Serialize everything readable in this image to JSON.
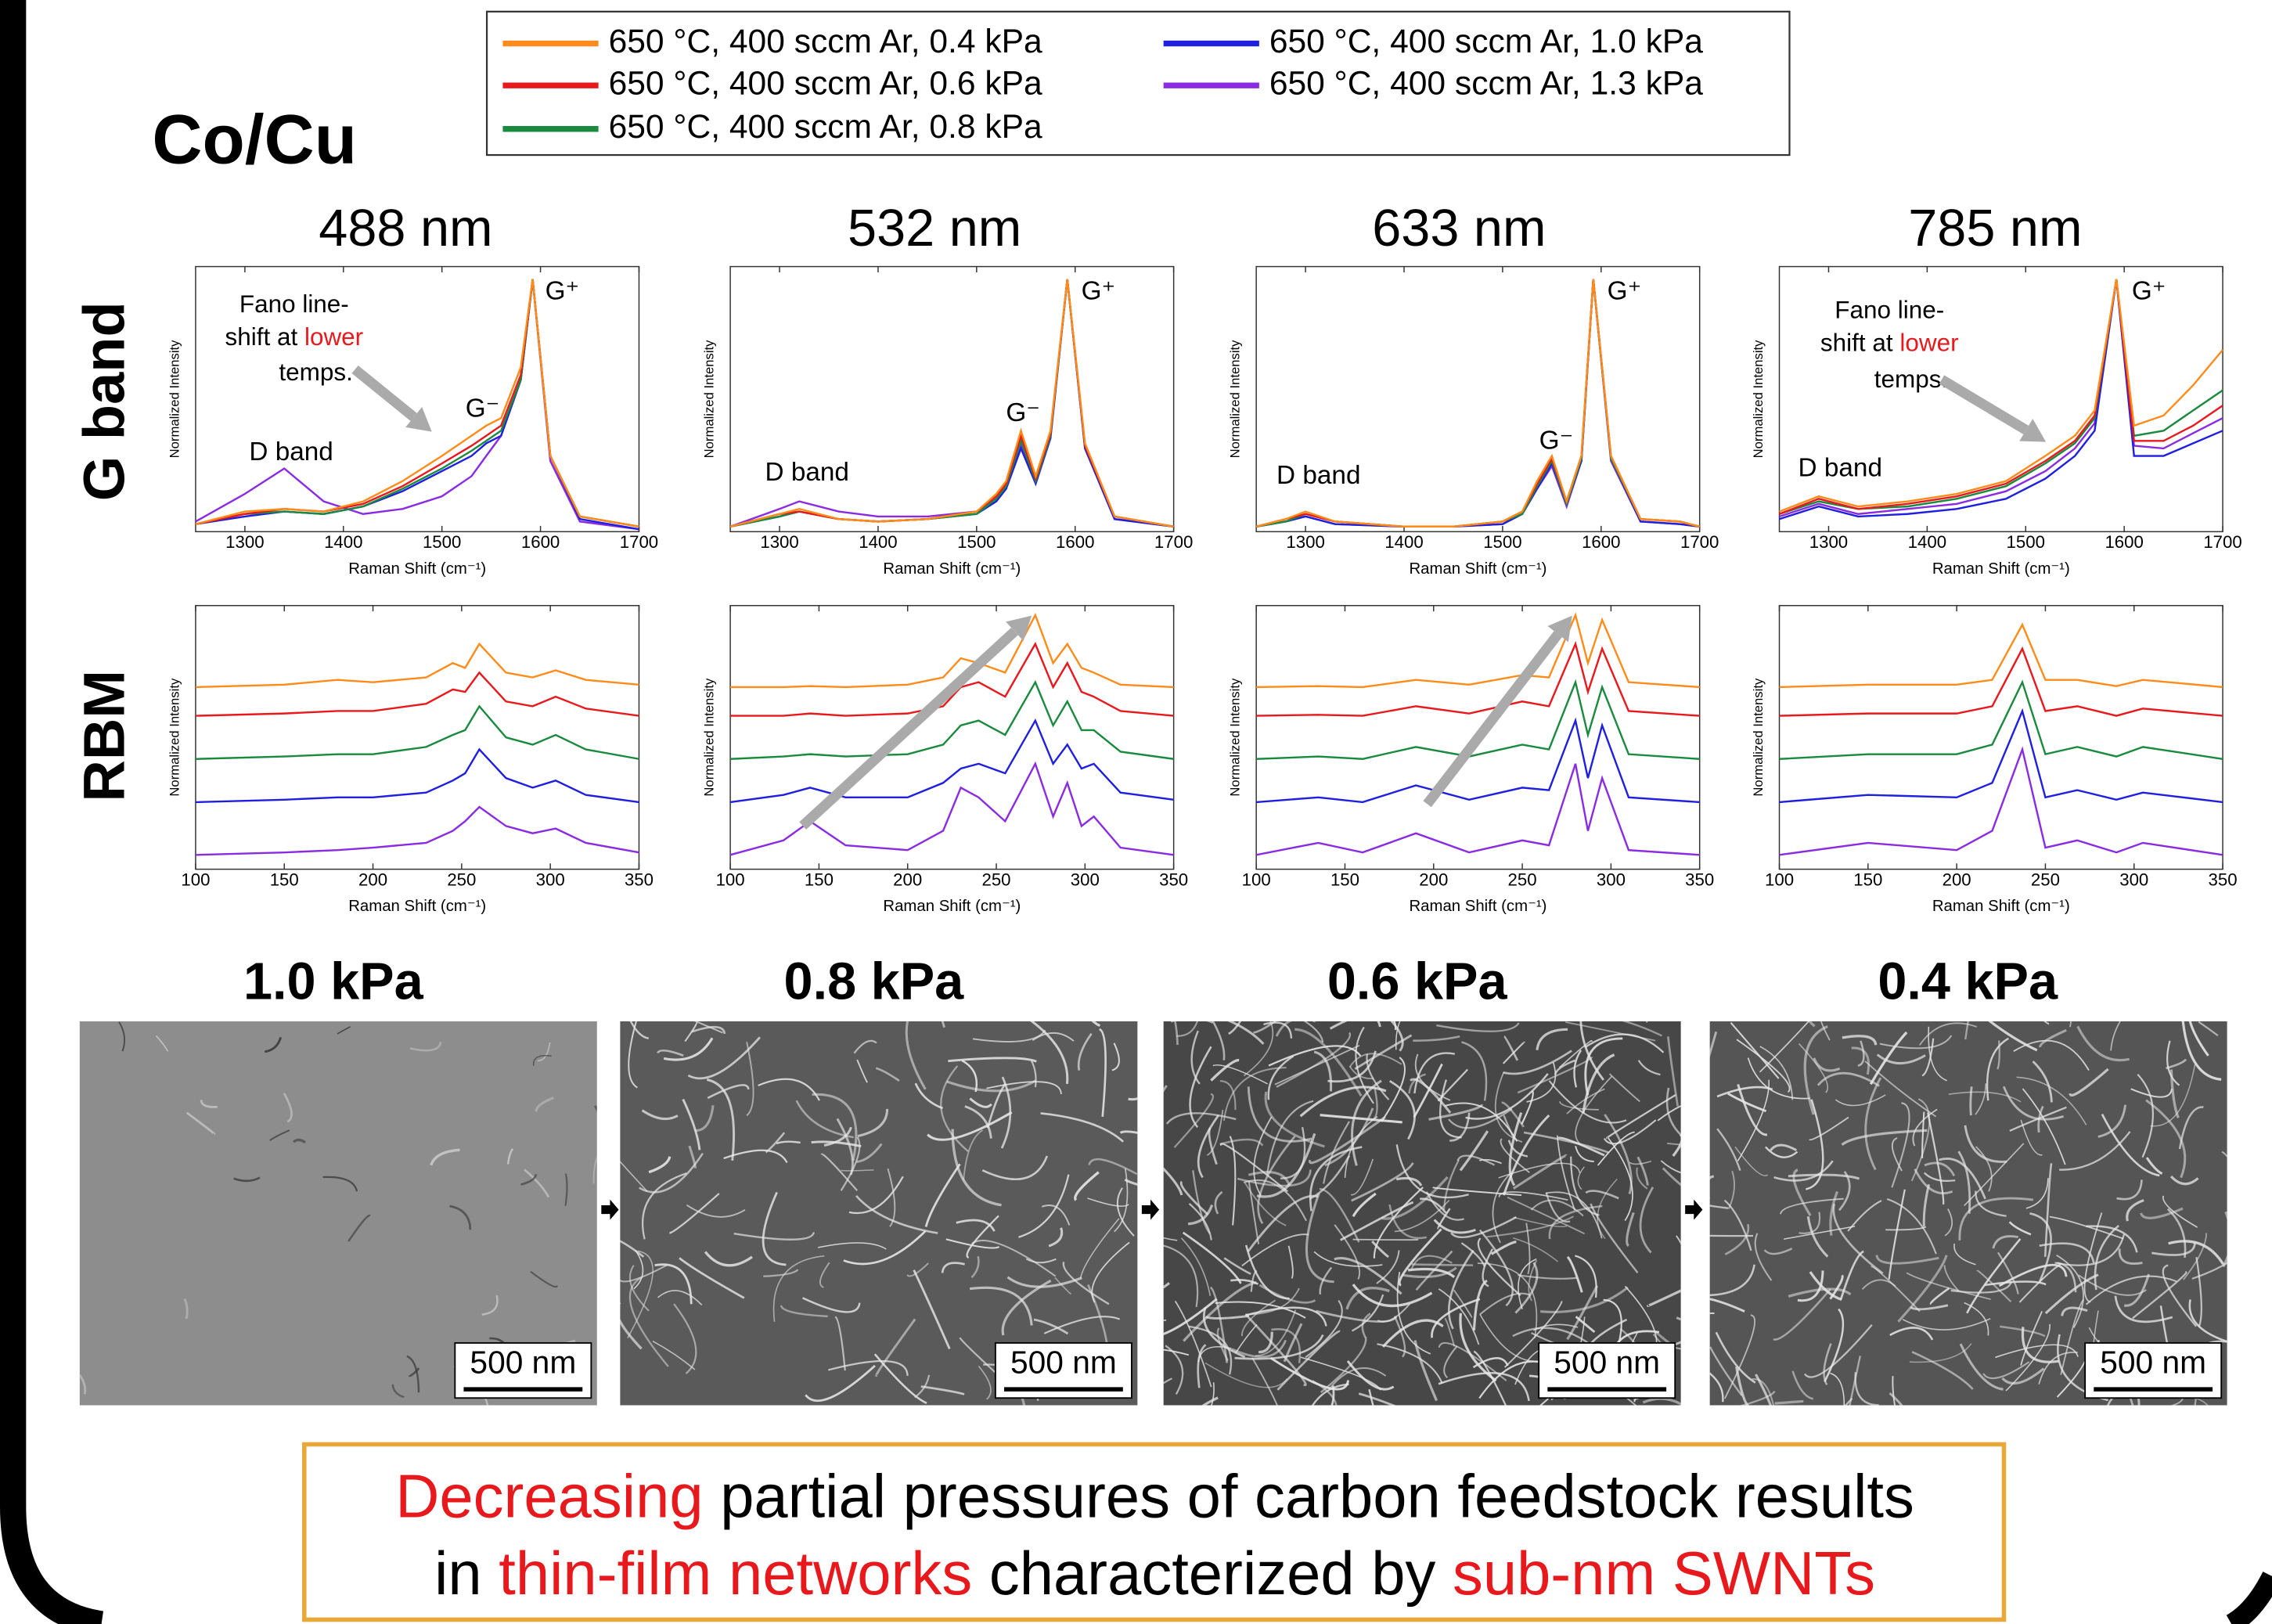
{
  "heading": "Co/Cu",
  "row_labels": [
    "G band",
    "RBM"
  ],
  "legend": [
    {
      "name": "650 °C, 400 sccm Ar, 0.4 kPa",
      "color": "#ff8c1a"
    },
    {
      "name": "650 °C, 400 sccm Ar, 0.6 kPa",
      "color": "#e8191c"
    },
    {
      "name": "650 °C, 400 sccm Ar, 0.8 kPa",
      "color": "#1a8a3e"
    },
    {
      "name": "650 °C, 400 sccm Ar, 1.0 kPa",
      "color": "#1f1fe0"
    },
    {
      "name": "650 °C, 400 sccm Ar, 1.3 kPa",
      "color": "#8a2be2"
    }
  ],
  "chart_data": [
    {
      "type": "line",
      "title": "488 nm",
      "xlabel": "Raman Shift (cm⁻¹)",
      "ylabel": "Normalized Intensity",
      "x": [
        1250,
        1300,
        1340,
        1380,
        1420,
        1460,
        1500,
        1530,
        1545,
        1560,
        1580,
        1592,
        1610,
        1640,
        1700
      ],
      "xlim": [
        1250,
        1700
      ],
      "xticks": [
        1300,
        1400,
        1500,
        1600,
        1700
      ],
      "ylim": [
        0,
        1.05
      ],
      "series": [
        {
          "values": [
            0.03,
            0.08,
            0.09,
            0.08,
            0.12,
            0.2,
            0.3,
            0.38,
            0.42,
            0.45,
            0.65,
            1.0,
            0.3,
            0.06,
            0.02
          ]
        },
        {
          "values": [
            0.03,
            0.07,
            0.09,
            0.08,
            0.11,
            0.18,
            0.27,
            0.34,
            0.38,
            0.42,
            0.62,
            1.0,
            0.3,
            0.06,
            0.02
          ]
        },
        {
          "values": [
            0.03,
            0.07,
            0.08,
            0.07,
            0.1,
            0.17,
            0.25,
            0.32,
            0.36,
            0.4,
            0.6,
            1.0,
            0.3,
            0.06,
            0.02
          ]
        },
        {
          "values": [
            0.03,
            0.06,
            0.08,
            0.07,
            0.1,
            0.16,
            0.24,
            0.3,
            0.35,
            0.38,
            0.6,
            1.0,
            0.3,
            0.05,
            0.01
          ]
        },
        {
          "values": [
            0.04,
            0.15,
            0.25,
            0.12,
            0.07,
            0.09,
            0.14,
            0.22,
            0.3,
            0.38,
            0.6,
            1.0,
            0.28,
            0.04,
            0.01
          ]
        }
      ],
      "annotations": [
        "D band",
        "G⁻",
        "G⁺"
      ],
      "note": [
        {
          "text": "Fano line-"
        },
        {
          "text": "shift at"
        },
        {
          "text": "lower",
          "color": "#e8191c"
        },
        {
          "text": "temps."
        }
      ]
    },
    {
      "type": "line",
      "title": "532 nm",
      "xlabel": "Raman Shift (cm⁻¹)",
      "ylabel": "Normalized Intensity",
      "x": [
        1250,
        1300,
        1320,
        1360,
        1400,
        1450,
        1500,
        1520,
        1530,
        1545,
        1560,
        1575,
        1592,
        1610,
        1640,
        1700
      ],
      "xlim": [
        1250,
        1700
      ],
      "xticks": [
        1300,
        1400,
        1500,
        1600,
        1700
      ],
      "ylim": [
        0,
        1.05
      ],
      "series": [
        {
          "values": [
            0.02,
            0.07,
            0.09,
            0.05,
            0.04,
            0.05,
            0.08,
            0.15,
            0.2,
            0.4,
            0.22,
            0.4,
            1.0,
            0.35,
            0.06,
            0.02
          ]
        },
        {
          "values": [
            0.02,
            0.07,
            0.08,
            0.05,
            0.04,
            0.05,
            0.08,
            0.14,
            0.19,
            0.38,
            0.21,
            0.39,
            1.0,
            0.34,
            0.06,
            0.02
          ]
        },
        {
          "values": [
            0.02,
            0.06,
            0.08,
            0.05,
            0.04,
            0.05,
            0.07,
            0.13,
            0.18,
            0.36,
            0.2,
            0.38,
            1.0,
            0.34,
            0.06,
            0.02
          ]
        },
        {
          "values": [
            0.02,
            0.06,
            0.08,
            0.05,
            0.04,
            0.05,
            0.07,
            0.12,
            0.17,
            0.33,
            0.19,
            0.37,
            1.0,
            0.33,
            0.05,
            0.02
          ]
        },
        {
          "values": [
            0.02,
            0.09,
            0.12,
            0.08,
            0.06,
            0.06,
            0.08,
            0.13,
            0.18,
            0.34,
            0.2,
            0.38,
            1.0,
            0.33,
            0.05,
            0.02
          ]
        }
      ],
      "annotations": [
        "D band",
        "G⁻",
        "G⁺"
      ]
    },
    {
      "type": "line",
      "title": "633 nm",
      "xlabel": "Raman Shift (cm⁻¹)",
      "ylabel": "Normalized Intensity",
      "x": [
        1250,
        1280,
        1300,
        1330,
        1400,
        1450,
        1500,
        1520,
        1535,
        1550,
        1565,
        1580,
        1592,
        1610,
        1640,
        1680,
        1700
      ],
      "xlim": [
        1250,
        1700
      ],
      "xticks": [
        1300,
        1400,
        1500,
        1600,
        1700
      ],
      "ylim": [
        0,
        1.05
      ],
      "series": [
        {
          "values": [
            0.02,
            0.05,
            0.08,
            0.04,
            0.02,
            0.02,
            0.04,
            0.08,
            0.2,
            0.3,
            0.12,
            0.3,
            1.0,
            0.3,
            0.05,
            0.04,
            0.02
          ]
        },
        {
          "values": [
            0.02,
            0.05,
            0.07,
            0.04,
            0.02,
            0.02,
            0.04,
            0.08,
            0.19,
            0.29,
            0.12,
            0.3,
            1.0,
            0.3,
            0.05,
            0.04,
            0.02
          ]
        },
        {
          "values": [
            0.02,
            0.04,
            0.07,
            0.04,
            0.02,
            0.02,
            0.04,
            0.07,
            0.18,
            0.28,
            0.11,
            0.29,
            1.0,
            0.29,
            0.05,
            0.04,
            0.02
          ]
        },
        {
          "values": [
            0.02,
            0.04,
            0.06,
            0.03,
            0.02,
            0.02,
            0.03,
            0.07,
            0.17,
            0.27,
            0.11,
            0.28,
            1.0,
            0.29,
            0.04,
            0.03,
            0.02
          ]
        },
        {
          "values": [
            0.02,
            0.04,
            0.06,
            0.03,
            0.02,
            0.02,
            0.03,
            0.07,
            0.17,
            0.26,
            0.1,
            0.28,
            1.0,
            0.28,
            0.04,
            0.03,
            0.02
          ]
        }
      ],
      "annotations": [
        "D band",
        "G⁻",
        "G⁺"
      ]
    },
    {
      "type": "line",
      "title": "785 nm",
      "xlabel": "Raman Shift (cm⁻¹)",
      "ylabel": "Normalized Intensity",
      "x": [
        1250,
        1290,
        1330,
        1380,
        1430,
        1480,
        1520,
        1550,
        1570,
        1592,
        1610,
        1640,
        1670,
        1700
      ],
      "xlim": [
        1250,
        1700
      ],
      "xticks": [
        1300,
        1400,
        1500,
        1600,
        1700
      ],
      "ylim": [
        0,
        1.05
      ],
      "series": [
        {
          "values": [
            0.08,
            0.14,
            0.1,
            0.12,
            0.15,
            0.2,
            0.3,
            0.38,
            0.48,
            1.0,
            0.42,
            0.46,
            0.58,
            0.72
          ]
        },
        {
          "values": [
            0.07,
            0.13,
            0.09,
            0.11,
            0.14,
            0.19,
            0.28,
            0.36,
            0.46,
            1.0,
            0.36,
            0.36,
            0.42,
            0.5
          ]
        },
        {
          "values": [
            0.07,
            0.12,
            0.09,
            0.1,
            0.13,
            0.18,
            0.27,
            0.35,
            0.45,
            1.0,
            0.38,
            0.4,
            0.48,
            0.56
          ]
        },
        {
          "values": [
            0.05,
            0.1,
            0.06,
            0.07,
            0.09,
            0.13,
            0.21,
            0.3,
            0.4,
            1.0,
            0.3,
            0.3,
            0.35,
            0.4
          ]
        },
        {
          "values": [
            0.06,
            0.11,
            0.07,
            0.09,
            0.11,
            0.16,
            0.24,
            0.33,
            0.43,
            1.0,
            0.34,
            0.33,
            0.39,
            0.45
          ]
        }
      ],
      "annotations": [
        "D band",
        "G⁺"
      ],
      "note": [
        {
          "text": "Fano line-"
        },
        {
          "text": "shift at"
        },
        {
          "text": "lower",
          "color": "#e8191c"
        },
        {
          "text": "temps."
        }
      ]
    },
    {
      "type": "line",
      "xlabel": "Raman Shift (cm⁻¹)",
      "ylabel": "Normalized Intensity",
      "x": [
        100,
        150,
        180,
        200,
        230,
        245,
        252,
        260,
        275,
        290,
        303,
        320,
        350
      ],
      "xlim": [
        100,
        350
      ],
      "xticks": [
        100,
        150,
        200,
        250,
        300,
        350
      ],
      "ylim": [
        0,
        5.5
      ],
      "series": [
        {
          "values": [
            3.8,
            3.85,
            3.95,
            3.9,
            4.0,
            4.3,
            4.2,
            4.7,
            4.1,
            4.0,
            4.15,
            3.95,
            3.85
          ]
        },
        {
          "values": [
            3.2,
            3.25,
            3.3,
            3.3,
            3.45,
            3.75,
            3.7,
            4.1,
            3.5,
            3.4,
            3.6,
            3.35,
            3.2
          ]
        },
        {
          "values": [
            2.3,
            2.35,
            2.4,
            2.4,
            2.55,
            2.8,
            2.9,
            3.4,
            2.75,
            2.6,
            2.8,
            2.5,
            2.3
          ]
        },
        {
          "values": [
            1.4,
            1.45,
            1.5,
            1.5,
            1.6,
            1.85,
            2.0,
            2.5,
            1.9,
            1.7,
            1.85,
            1.55,
            1.4
          ]
        },
        {
          "values": [
            0.3,
            0.35,
            0.4,
            0.45,
            0.55,
            0.8,
            1.0,
            1.3,
            0.9,
            0.75,
            0.85,
            0.55,
            0.35
          ]
        }
      ]
    },
    {
      "type": "line",
      "xlabel": "Raman Shift (cm⁻¹)",
      "ylabel": "Normalized Intensity",
      "x": [
        100,
        130,
        145,
        165,
        200,
        220,
        230,
        240,
        255,
        272,
        282,
        290,
        298,
        305,
        320,
        350
      ],
      "xlim": [
        100,
        350
      ],
      "xticks": [
        100,
        150,
        200,
        250,
        300,
        350
      ],
      "ylim": [
        0,
        5.5
      ],
      "series": [
        {
          "values": [
            3.8,
            3.8,
            3.82,
            3.8,
            3.85,
            4.0,
            4.4,
            4.3,
            4.1,
            5.3,
            4.3,
            4.7,
            4.2,
            4.1,
            3.85,
            3.8
          ]
        },
        {
          "values": [
            3.2,
            3.2,
            3.25,
            3.2,
            3.25,
            3.4,
            3.8,
            3.9,
            3.6,
            4.7,
            3.8,
            4.3,
            3.7,
            3.6,
            3.3,
            3.2
          ]
        },
        {
          "values": [
            2.3,
            2.35,
            2.4,
            2.35,
            2.4,
            2.6,
            3.0,
            3.1,
            2.8,
            3.9,
            3.0,
            3.5,
            2.9,
            2.9,
            2.45,
            2.3
          ]
        },
        {
          "values": [
            1.4,
            1.55,
            1.7,
            1.5,
            1.5,
            1.8,
            2.1,
            2.2,
            2.0,
            3.1,
            2.2,
            2.6,
            2.1,
            2.2,
            1.6,
            1.45
          ]
        },
        {
          "values": [
            0.3,
            0.6,
            1.0,
            0.5,
            0.4,
            0.8,
            1.7,
            1.5,
            1.0,
            2.2,
            1.1,
            1.8,
            0.9,
            1.1,
            0.45,
            0.3
          ]
        }
      ]
    },
    {
      "type": "line",
      "xlabel": "Raman Shift (cm⁻¹)",
      "ylabel": "Normalized Intensity",
      "x": [
        100,
        135,
        160,
        190,
        220,
        250,
        265,
        280,
        287,
        295,
        310,
        350
      ],
      "xlim": [
        100,
        350
      ],
      "xticks": [
        100,
        150,
        200,
        250,
        300,
        350
      ],
      "ylim": [
        0,
        5.5
      ],
      "series": [
        {
          "values": [
            3.8,
            3.82,
            3.8,
            3.95,
            3.85,
            4.05,
            4.0,
            5.3,
            4.3,
            5.2,
            3.9,
            3.8
          ]
        },
        {
          "values": [
            3.2,
            3.22,
            3.2,
            3.4,
            3.25,
            3.5,
            3.4,
            4.7,
            3.7,
            4.6,
            3.3,
            3.2
          ]
        },
        {
          "values": [
            2.3,
            2.35,
            2.3,
            2.55,
            2.35,
            2.6,
            2.5,
            3.9,
            2.8,
            3.8,
            2.4,
            2.3
          ]
        },
        {
          "values": [
            1.4,
            1.5,
            1.4,
            1.75,
            1.45,
            1.7,
            1.65,
            3.1,
            1.9,
            3.0,
            1.5,
            1.4
          ]
        },
        {
          "values": [
            0.3,
            0.55,
            0.35,
            0.75,
            0.35,
            0.6,
            0.5,
            2.2,
            0.8,
            1.9,
            0.4,
            0.3
          ]
        }
      ]
    },
    {
      "type": "line",
      "xlabel": "Raman Shift (cm⁻¹)",
      "ylabel": "Normalized Intensity",
      "x": [
        100,
        150,
        200,
        220,
        237,
        250,
        268,
        290,
        305,
        350
      ],
      "xlim": [
        100,
        350
      ],
      "xticks": [
        100,
        150,
        200,
        250,
        300,
        350
      ],
      "ylim": [
        0,
        5.5
      ],
      "series": [
        {
          "values": [
            3.8,
            3.85,
            3.85,
            3.95,
            5.1,
            3.95,
            3.95,
            3.82,
            3.95,
            3.8
          ]
        },
        {
          "values": [
            3.2,
            3.25,
            3.25,
            3.4,
            4.6,
            3.3,
            3.4,
            3.2,
            3.35,
            3.2
          ]
        },
        {
          "values": [
            2.3,
            2.4,
            2.4,
            2.6,
            3.9,
            2.4,
            2.55,
            2.35,
            2.55,
            2.3
          ]
        },
        {
          "values": [
            1.4,
            1.55,
            1.5,
            1.8,
            3.3,
            1.5,
            1.65,
            1.45,
            1.6,
            1.4
          ]
        },
        {
          "values": [
            0.3,
            0.55,
            0.4,
            0.8,
            2.5,
            0.45,
            0.6,
            0.35,
            0.55,
            0.3
          ]
        }
      ]
    }
  ],
  "images": [
    {
      "title": "1.0 kPa",
      "scale_bar": "500 nm"
    },
    {
      "title": "0.8 kPa",
      "scale_bar": "500 nm"
    },
    {
      "title": "0.6 kPa",
      "scale_bar": "500 nm"
    },
    {
      "title": "0.4 kPa",
      "scale_bar": "500 nm"
    }
  ],
  "conclusion": [
    [
      {
        "text": "Decreasing",
        "color": "#e8191c"
      },
      {
        "text": "partial pressures of carbon feedstock results"
      }
    ],
    [
      {
        "text": "in"
      },
      {
        "text": "thin-film networks",
        "color": "#e8191c"
      },
      {
        "text": "characterized by"
      },
      {
        "text": "sub-nm SWNTs",
        "color": "#e8191c"
      }
    ]
  ]
}
